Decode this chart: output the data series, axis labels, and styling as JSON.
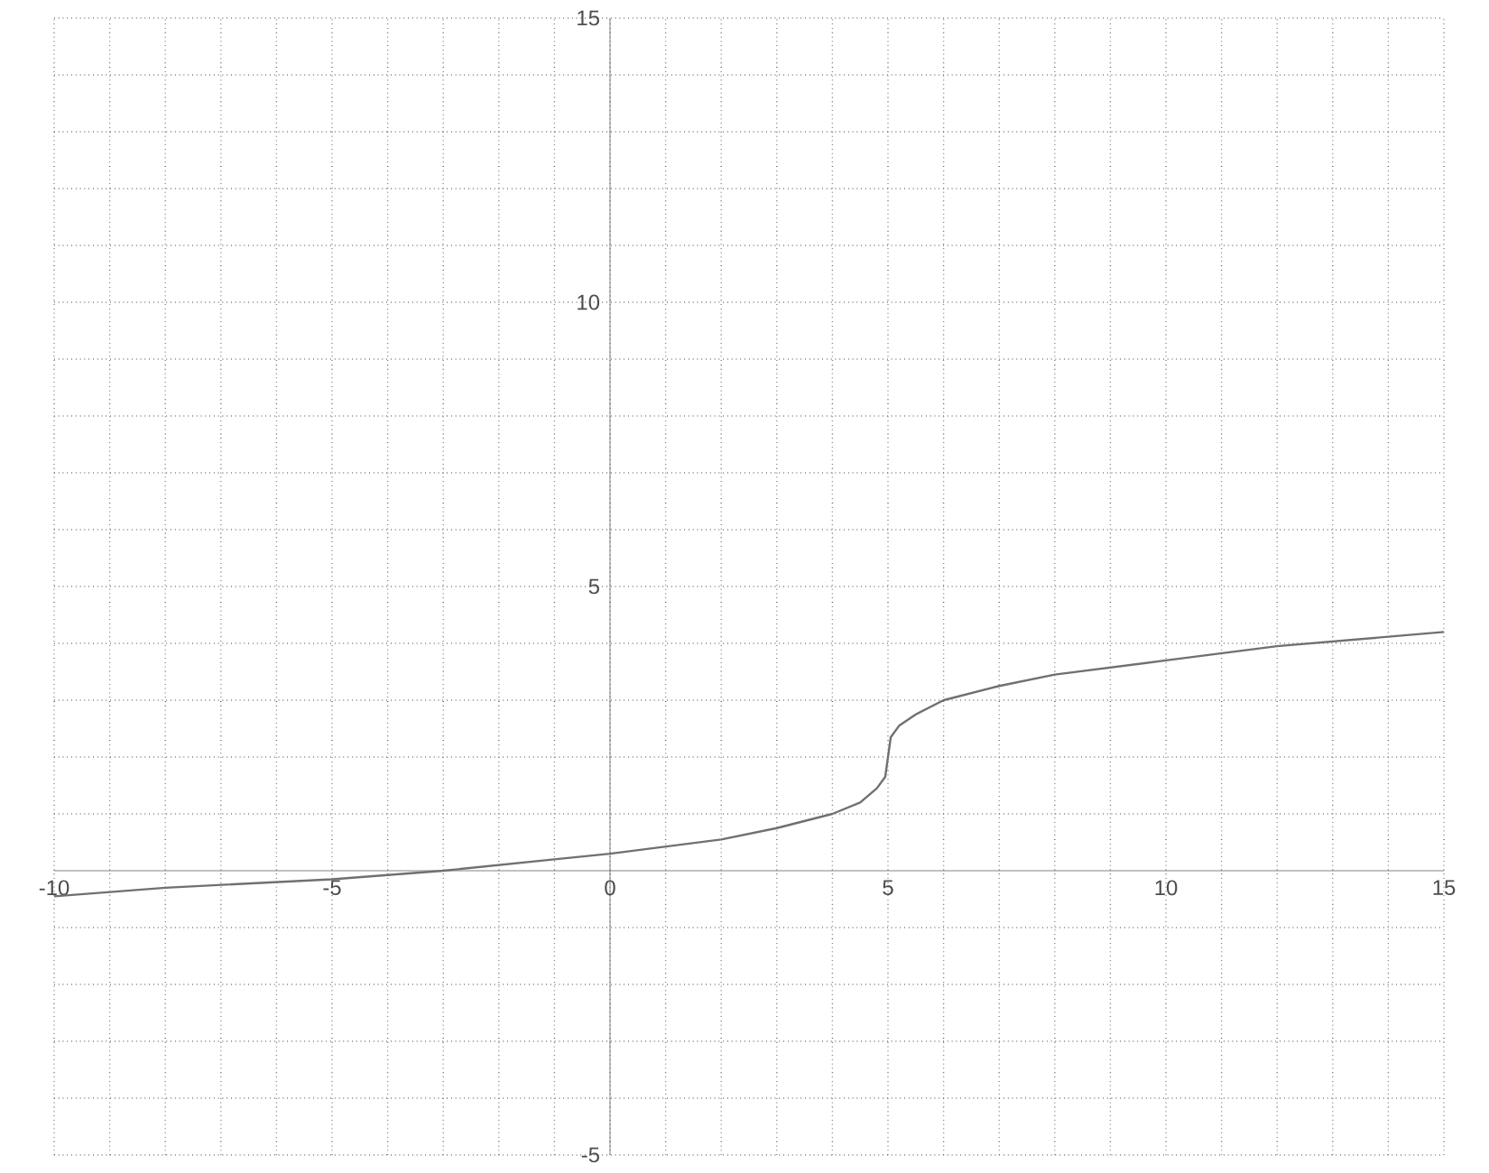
{
  "chart_data": {
    "type": "line",
    "color": "#707070",
    "grid": true,
    "marker": "none",
    "line_style": "solid",
    "x": [
      -10,
      -8,
      -5,
      -3,
      -1,
      0,
      2,
      3,
      4,
      4.5,
      4.8,
      4.95,
      5,
      5.05,
      5.2,
      5.5,
      6,
      7,
      8,
      10,
      12,
      15
    ],
    "values": [
      -0.45,
      -0.3,
      -0.15,
      0,
      0.2,
      0.3,
      0.55,
      0.75,
      1.0,
      1.2,
      1.45,
      1.65,
      2.0,
      2.35,
      2.55,
      2.75,
      3.0,
      3.25,
      3.45,
      3.7,
      3.95,
      4.2
    ],
    "xlim": [
      -10,
      15
    ],
    "ylim": [
      -5,
      15
    ],
    "xticks": [
      -10,
      {
        "value": -9,
        "label": null
      },
      {
        "value": -8,
        "label": null
      },
      {
        "value": -7,
        "label": null
      },
      {
        "value": -6,
        "label": null
      },
      -5,
      {
        "value": -4,
        "label": null
      },
      {
        "value": -3,
        "label": null
      },
      {
        "value": -2,
        "label": null
      },
      {
        "value": -1,
        "label": null
      },
      0,
      {
        "value": 1,
        "label": null
      },
      {
        "value": 2,
        "label": null
      },
      {
        "value": 3,
        "label": null
      },
      {
        "value": 4,
        "label": null
      },
      5,
      {
        "value": 6,
        "label": null
      },
      {
        "value": 7,
        "label": null
      },
      {
        "value": 8,
        "label": null
      },
      {
        "value": 9,
        "label": null
      },
      10,
      {
        "value": 11,
        "label": null
      },
      {
        "value": 12,
        "label": null
      },
      {
        "value": 13,
        "label": null
      },
      {
        "value": 14,
        "label": null
      },
      15
    ],
    "yticks": [
      -5,
      {
        "value": -4,
        "label": null
      },
      {
        "value": -3,
        "label": null
      },
      {
        "value": -2,
        "label": null
      },
      {
        "value": -1,
        "label": null
      },
      {
        "value": 0,
        "label": null
      },
      {
        "value": 1,
        "label": null
      },
      {
        "value": 2,
        "label": null
      },
      {
        "value": 3,
        "label": null
      },
      {
        "value": 4,
        "label": null
      },
      5,
      {
        "value": 6,
        "label": null
      },
      {
        "value": 7,
        "label": null
      },
      {
        "value": 8,
        "label": null
      },
      {
        "value": 9,
        "label": null
      },
      10,
      {
        "value": 11,
        "label": null
      },
      {
        "value": 12,
        "label": null
      },
      {
        "value": 13,
        "label": null
      },
      {
        "value": 14,
        "label": null
      },
      15
    ]
  }
}
